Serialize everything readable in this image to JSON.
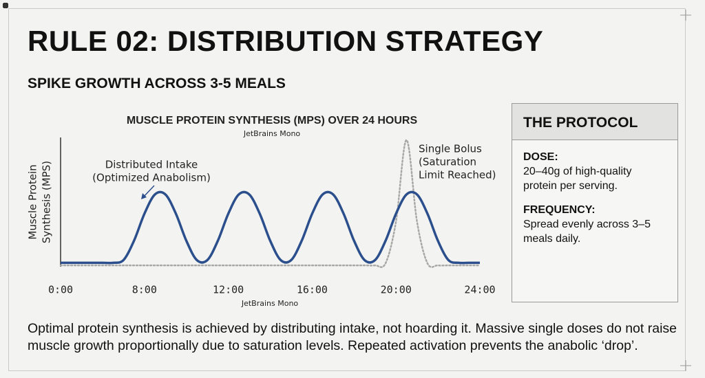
{
  "header": {
    "title": "RULE 02: DISTRIBUTION STRATEGY",
    "subtitle": "SPIKE GROWTH ACROSS 3-5 MEALS"
  },
  "chart_data": {
    "type": "line",
    "title": "MUSCLE PROTEIN SYNTHESIS (MPS) OVER 24 HOURS",
    "title_note": "JetBrains Mono",
    "x_note": "JetBrains Mono",
    "y_label": [
      "Muscle Protein",
      "Synthesis (MPS)"
    ],
    "x": [
      4,
      4.5,
      5,
      5.5,
      6,
      6.5,
      7,
      7.5,
      8,
      8.5,
      9,
      9.5,
      10,
      10.5,
      11,
      11.5,
      12,
      12.5,
      13,
      13.5,
      14,
      14.5,
      15,
      15.5,
      16,
      16.5,
      17,
      17.5,
      18,
      18.5,
      19,
      19.5,
      20,
      20.5,
      21,
      21.5,
      22,
      22.5,
      23,
      23.5,
      24
    ],
    "xlim": [
      4,
      24
    ],
    "xticks": [
      {
        "value": 4,
        "label": "0:00"
      },
      {
        "value": 8,
        "label": "8:00"
      },
      {
        "value": 12,
        "label": "12:00"
      },
      {
        "value": 16,
        "label": "16:00"
      },
      {
        "value": 20,
        "label": "20:00"
      },
      {
        "value": 24,
        "label": "24:00"
      }
    ],
    "ylim": [
      0,
      100
    ],
    "series": [
      {
        "name": "Distributed Intake",
        "color": "#2b4f8c",
        "style": "solid",
        "values": [
          3,
          3,
          3,
          3,
          3,
          3,
          5.1,
          20,
          41,
          55.9,
          55.9,
          41,
          20,
          5.1,
          5.1,
          20,
          41,
          55.9,
          55.9,
          41,
          20,
          5.1,
          5.1,
          20,
          41,
          55.9,
          55.9,
          41,
          20,
          5.1,
          5.1,
          20,
          41,
          55.9,
          55.9,
          41,
          20,
          5.1,
          3,
          3,
          3
        ]
      },
      {
        "name": "Single Bolus",
        "color": "#a8a8a8",
        "style": "dotted",
        "values": [
          1,
          1,
          1,
          1,
          1,
          1,
          1,
          1,
          1,
          1,
          1,
          1,
          1,
          1,
          1,
          1,
          1,
          1,
          1,
          1,
          1,
          1,
          1,
          1,
          1,
          1,
          1,
          1,
          1,
          1,
          1,
          2.6,
          35,
          98,
          35,
          2.6,
          1,
          1,
          1,
          1,
          1
        ]
      }
    ],
    "annotations": [
      {
        "lines": [
          "Distributed Intake",
          "(Optimized Anabolism)"
        ]
      },
      {
        "lines": [
          "Single Bolus",
          "(Saturation",
          "Limit Reached)"
        ]
      }
    ]
  },
  "panel": {
    "title": "THE PROTOCOL",
    "items": [
      {
        "label": "DOSE:",
        "text": "20–40g of high-quality protein per serving."
      },
      {
        "label": "FREQUENCY:",
        "text": "Spread evenly across 3–5 meals daily."
      }
    ]
  },
  "footer": "Optimal protein synthesis is achieved by distributing intake, not hoarding it. Massive single doses do not raise muscle growth proportionally due to saturation levels. Repeated activation prevents the anabolic ‘drop’."
}
